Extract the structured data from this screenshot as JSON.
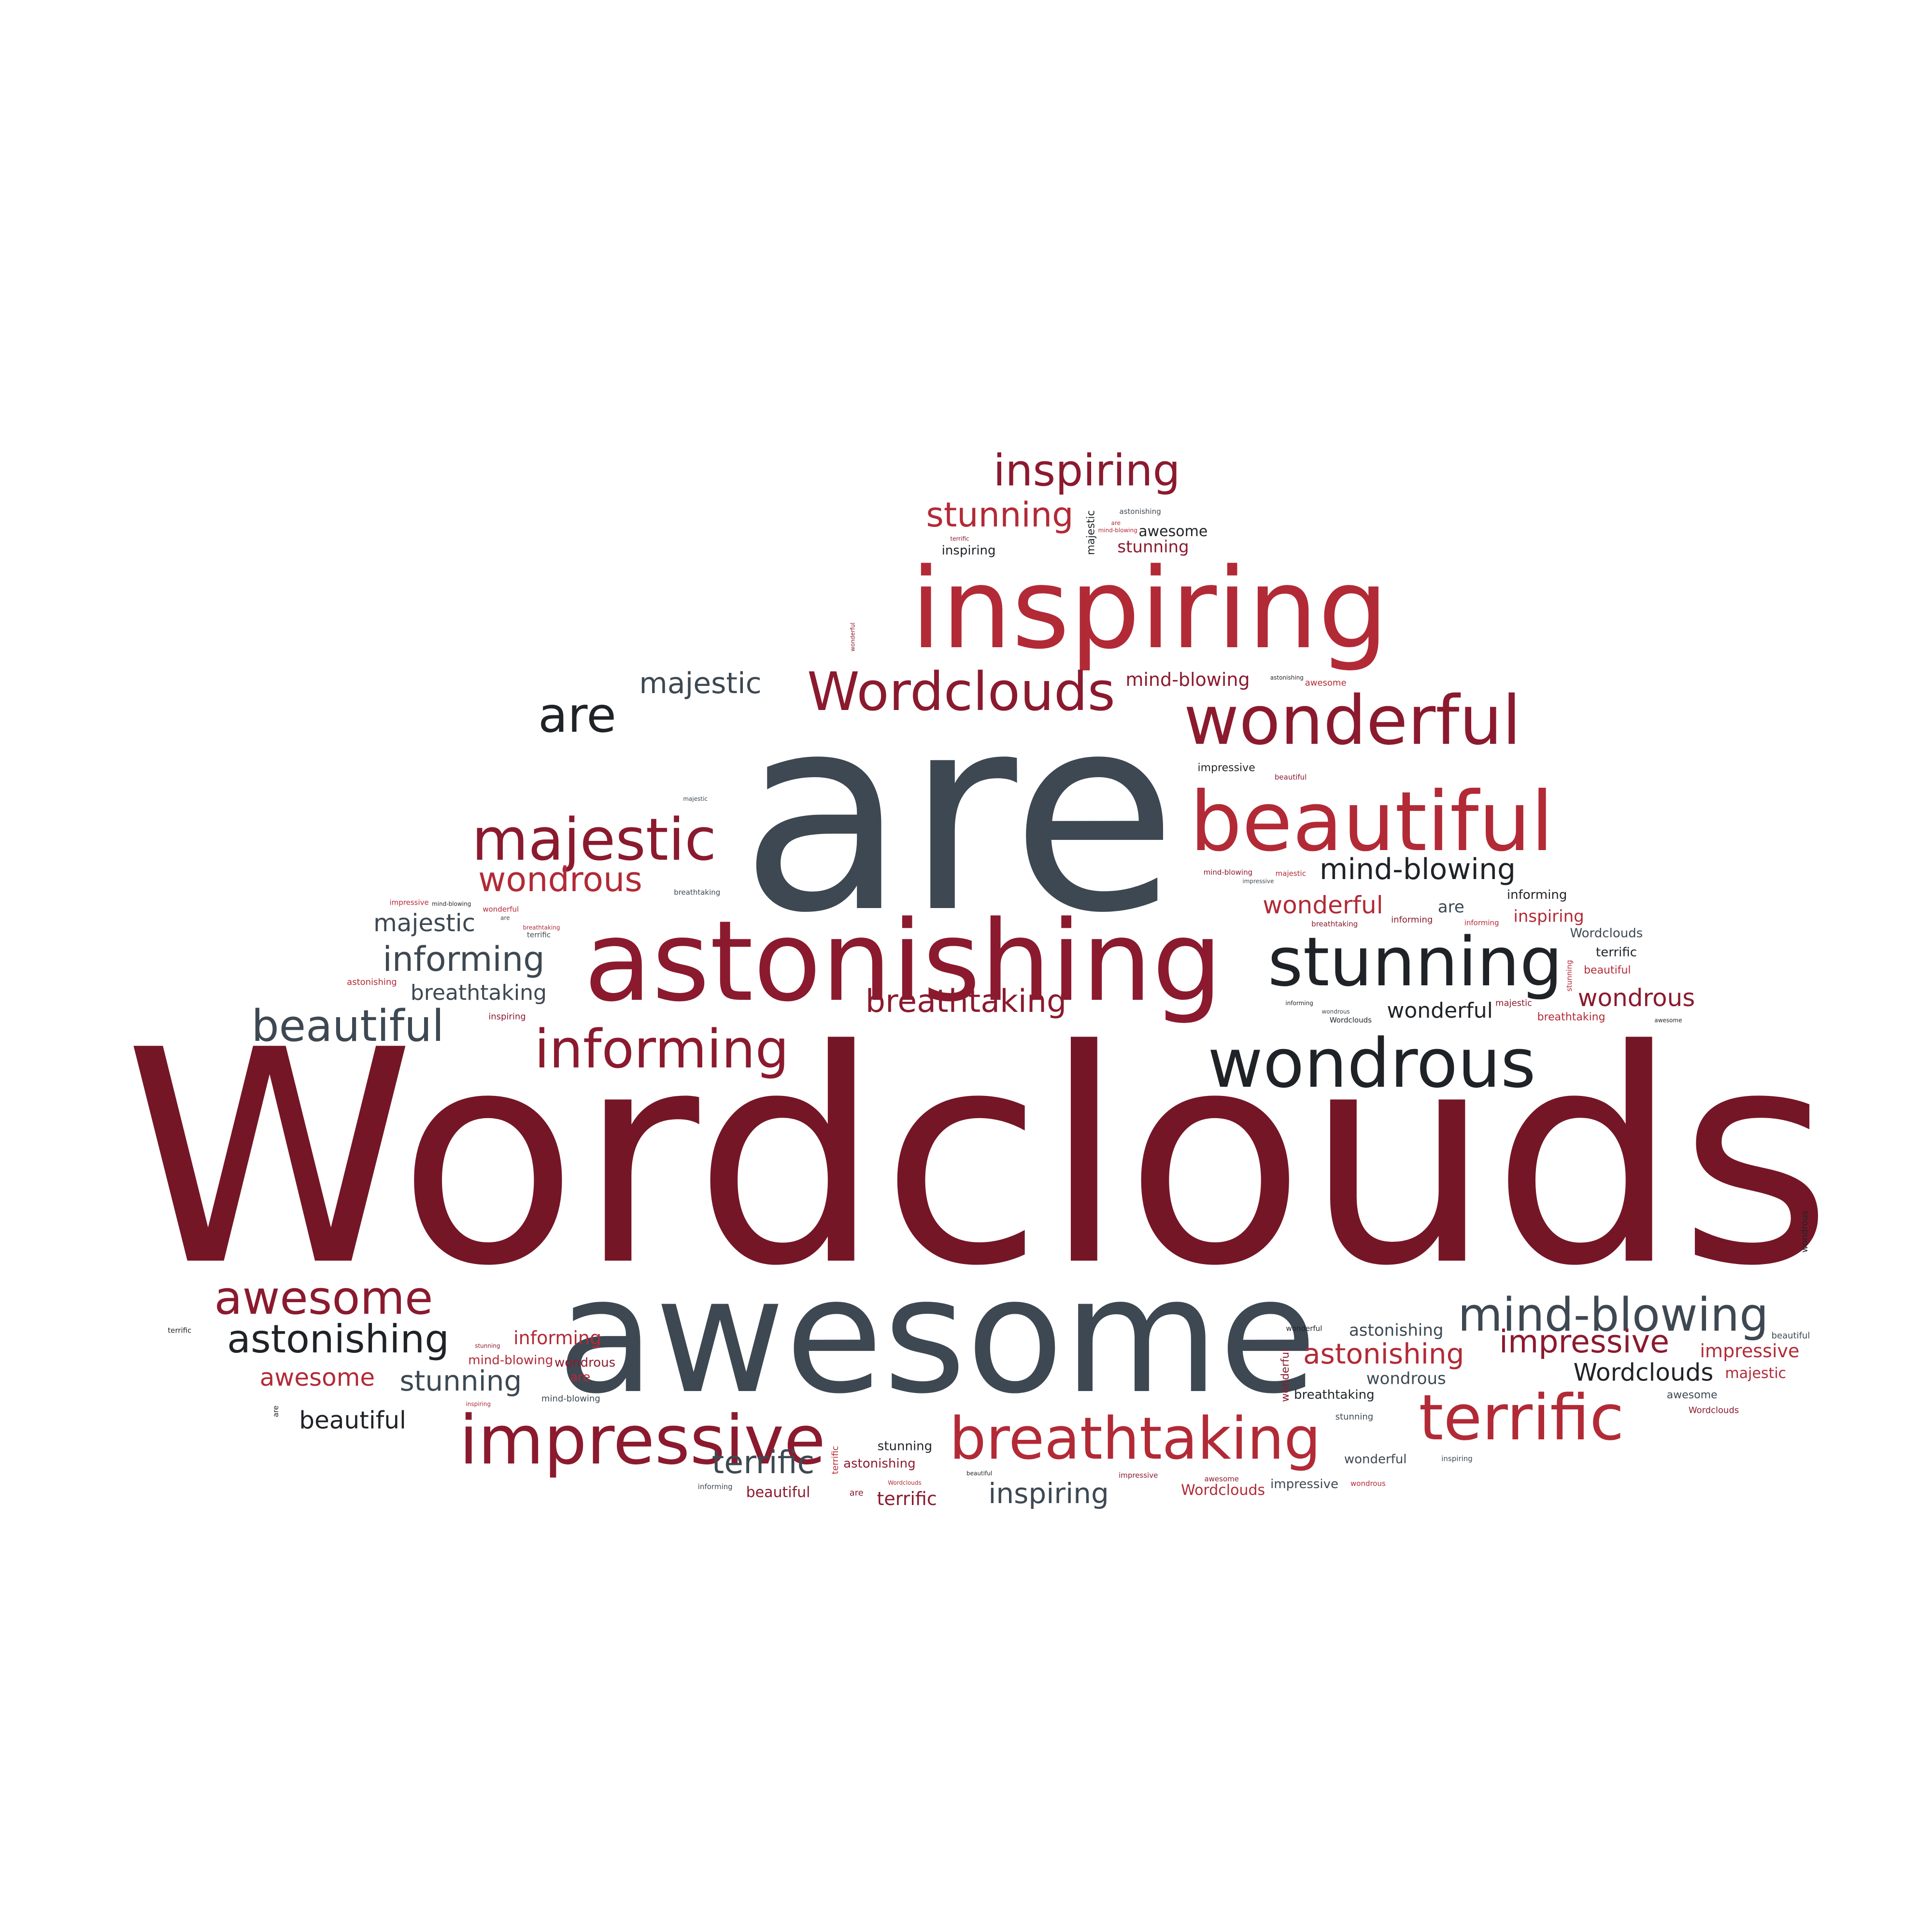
{
  "palette": {
    "dark_maroon": "#751626",
    "maroon": "#8b1a2e",
    "red": "#b22a36",
    "slate": "#3d4852",
    "charcoal": "#1f2327"
  },
  "words": [
    {
      "text": "Wordclouds",
      "color": "dark_maroon"
    },
    {
      "text": "are",
      "color": "slate"
    },
    {
      "text": "awesome",
      "color": "slate"
    },
    {
      "text": "astonishing",
      "color": "maroon"
    },
    {
      "text": "inspiring",
      "color": "red"
    },
    {
      "text": "wonderful",
      "color": "maroon"
    },
    {
      "text": "beautiful",
      "color": "red"
    },
    {
      "text": "stunning",
      "color": "charcoal"
    },
    {
      "text": "wondrous",
      "color": "charcoal"
    },
    {
      "text": "impressive",
      "color": "maroon"
    },
    {
      "text": "breathtaking",
      "color": "red"
    },
    {
      "text": "terrific",
      "color": "red"
    },
    {
      "text": "majestic",
      "color": "maroon"
    },
    {
      "text": "Wordclouds",
      "color": "maroon"
    },
    {
      "text": "informing",
      "color": "maroon"
    },
    {
      "text": "mind-blowing",
      "color": "slate"
    },
    {
      "text": "awesome",
      "color": "maroon"
    },
    {
      "text": "astonishing",
      "color": "charcoal"
    },
    {
      "text": "inspiring",
      "color": "maroon"
    },
    {
      "text": "stunning",
      "color": "red"
    },
    {
      "text": "are",
      "color": "charcoal"
    },
    {
      "text": "majestic",
      "color": "slate"
    },
    {
      "text": "beautiful",
      "color": "slate"
    },
    {
      "text": "informing",
      "color": "slate"
    },
    {
      "text": "mind-blowing",
      "color": "charcoal"
    },
    {
      "text": "wondrous",
      "color": "red"
    },
    {
      "text": "impressive",
      "color": "maroon"
    },
    {
      "text": "breathtaking",
      "color": "maroon"
    },
    {
      "text": "terrific",
      "color": "slate"
    },
    {
      "text": "inspiring",
      "color": "slate"
    },
    {
      "text": "astonishing",
      "color": "red"
    },
    {
      "text": "stunning",
      "color": "slate"
    },
    {
      "text": "wonderful",
      "color": "red"
    },
    {
      "text": "wondrous",
      "color": "maroon"
    },
    {
      "text": "majestic",
      "color": "slate"
    },
    {
      "text": "beautiful",
      "color": "charcoal"
    },
    {
      "text": "Wordclouds",
      "color": "charcoal"
    },
    {
      "text": "awesome",
      "color": "red"
    },
    {
      "text": "breathtaking",
      "color": "slate"
    },
    {
      "text": "wonderful",
      "color": "charcoal"
    },
    {
      "text": "impressive",
      "color": "red"
    },
    {
      "text": "terrific",
      "color": "maroon"
    },
    {
      "text": "informing",
      "color": "red"
    },
    {
      "text": "mind-blowing",
      "color": "maroon"
    },
    {
      "text": "are",
      "color": "slate"
    },
    {
      "text": "astonishing",
      "color": "slate"
    },
    {
      "text": "inspiring",
      "color": "red"
    },
    {
      "text": "stunning",
      "color": "maroon"
    },
    {
      "text": "wondrous",
      "color": "slate"
    },
    {
      "text": "Wordclouds",
      "color": "red"
    },
    {
      "text": "majestic",
      "color": "red"
    },
    {
      "text": "beautiful",
      "color": "maroon"
    },
    {
      "text": "awesome",
      "color": "charcoal"
    },
    {
      "text": "breathtaking",
      "color": "charcoal"
    },
    {
      "text": "impressive",
      "color": "slate"
    },
    {
      "text": "wonderful",
      "color": "slate"
    },
    {
      "text": "terrific",
      "color": "charcoal"
    },
    {
      "text": "informing",
      "color": "charcoal"
    },
    {
      "text": "mind-blowing",
      "color": "red"
    },
    {
      "text": "are",
      "color": "red"
    },
    {
      "text": "astonishing",
      "color": "maroon"
    },
    {
      "text": "stunning",
      "color": "charcoal"
    },
    {
      "text": "wondrous",
      "color": "maroon"
    },
    {
      "text": "inspiring",
      "color": "charcoal"
    },
    {
      "text": "Wordclouds",
      "color": "slate"
    },
    {
      "text": "majestic",
      "color": "charcoal"
    },
    {
      "text": "beautiful",
      "color": "red"
    },
    {
      "text": "awesome",
      "color": "slate"
    },
    {
      "text": "breathtaking",
      "color": "red"
    },
    {
      "text": "impressive",
      "color": "charcoal"
    },
    {
      "text": "wonderful",
      "color": "maroon"
    },
    {
      "text": "terrific",
      "color": "red"
    },
    {
      "text": "informing",
      "color": "maroon"
    },
    {
      "text": "mind-blowing",
      "color": "slate"
    },
    {
      "text": "are",
      "color": "maroon"
    },
    {
      "text": "astonishing",
      "color": "red"
    },
    {
      "text": "stunning",
      "color": "slate"
    },
    {
      "text": "wondrous",
      "color": "charcoal"
    },
    {
      "text": "inspiring",
      "color": "maroon"
    },
    {
      "text": "Wordclouds",
      "color": "maroon"
    },
    {
      "text": "majestic",
      "color": "maroon"
    },
    {
      "text": "beautiful",
      "color": "slate"
    },
    {
      "text": "awesome",
      "color": "red"
    },
    {
      "text": "breathtaking",
      "color": "maroon"
    },
    {
      "text": "impressive",
      "color": "red"
    },
    {
      "text": "wonderful",
      "color": "charcoal"
    },
    {
      "text": "terrific",
      "color": "slate"
    },
    {
      "text": "informing",
      "color": "slate"
    },
    {
      "text": "mind-blowing",
      "color": "maroon"
    },
    {
      "text": "are",
      "color": "charcoal"
    },
    {
      "text": "astonishing",
      "color": "slate"
    },
    {
      "text": "stunning",
      "color": "red"
    },
    {
      "text": "wondrous",
      "color": "red"
    },
    {
      "text": "inspiring",
      "color": "slate"
    },
    {
      "text": "Wordclouds",
      "color": "charcoal"
    },
    {
      "text": "majestic",
      "color": "red"
    },
    {
      "text": "beautiful",
      "color": "maroon"
    },
    {
      "text": "awesome",
      "color": "maroon"
    },
    {
      "text": "breathtaking",
      "color": "slate"
    },
    {
      "text": "impressive",
      "color": "maroon"
    },
    {
      "text": "wonderful",
      "color": "red"
    },
    {
      "text": "terrific",
      "color": "charcoal"
    },
    {
      "text": "informing",
      "color": "red"
    },
    {
      "text": "mind-blowing",
      "color": "charcoal"
    },
    {
      "text": "are",
      "color": "slate"
    },
    {
      "text": "astonishing",
      "color": "charcoal"
    },
    {
      "text": "stunning",
      "color": "maroon"
    },
    {
      "text": "wondrous",
      "color": "slate"
    },
    {
      "text": "inspiring",
      "color": "red"
    },
    {
      "text": "Wordclouds",
      "color": "red"
    },
    {
      "text": "majestic",
      "color": "slate"
    },
    {
      "text": "beautiful",
      "color": "charcoal"
    },
    {
      "text": "awesome",
      "color": "charcoal"
    },
    {
      "text": "breathtaking",
      "color": "red"
    },
    {
      "text": "impressive",
      "color": "slate"
    },
    {
      "text": "wonderful",
      "color": "maroon"
    },
    {
      "text": "terrific",
      "color": "maroon"
    },
    {
      "text": "informing",
      "color": "charcoal"
    },
    {
      "text": "mind-blowing",
      "color": "red"
    },
    {
      "text": "are",
      "color": "red"
    },
    {
      "text": "astonishing",
      "color": "maroon"
    },
    {
      "text": "stunning",
      "color": "charcoal"
    },
    {
      "text": "wondrous",
      "color": "maroon"
    },
    {
      "text": "inspiring",
      "color": "charcoal"
    },
    {
      "text": "Wordclouds",
      "color": "slate"
    },
    {
      "text": "majestic",
      "color": "charcoal"
    },
    {
      "text": "beautiful",
      "color": "red"
    },
    {
      "text": "awesome",
      "color": "slate"
    },
    {
      "text": "breathtaking",
      "color": "charcoal"
    },
    {
      "text": "impressive",
      "color": "red"
    },
    {
      "text": "wonderful",
      "color": "slate"
    },
    {
      "text": "terrific",
      "color": "red"
    },
    {
      "text": "informing",
      "color": "maroon"
    },
    {
      "text": "mind-blowing",
      "color": "slate"
    },
    {
      "text": "are",
      "color": "maroon"
    },
    {
      "text": "astonishing",
      "color": "red"
    },
    {
      "text": "stunning",
      "color": "slate"
    },
    {
      "text": "wondrous",
      "color": "red"
    },
    {
      "text": "inspiring",
      "color": "maroon"
    },
    {
      "text": "Wordclouds",
      "color": "maroon"
    },
    {
      "text": "majestic",
      "color": "maroon"
    },
    {
      "text": "beautiful",
      "color": "slate"
    },
    {
      "text": "awesome",
      "color": "red"
    },
    {
      "text": "breathtaking",
      "color": "maroon"
    },
    {
      "text": "impressive",
      "color": "charcoal"
    },
    {
      "text": "wonderful",
      "color": "red"
    },
    {
      "text": "terrific",
      "color": "slate"
    },
    {
      "text": "informing",
      "color": "slate"
    },
    {
      "text": "mind-blowing",
      "color": "maroon"
    },
    {
      "text": "are",
      "color": "charcoal"
    },
    {
      "text": "astonishing",
      "color": "slate"
    },
    {
      "text": "stunning",
      "color": "red"
    },
    {
      "text": "wondrous",
      "color": "charcoal"
    },
    {
      "text": "inspiring",
      "color": "red"
    },
    {
      "text": "Wordclouds",
      "color": "red"
    },
    {
      "text": "majestic",
      "color": "red"
    },
    {
      "text": "beautiful",
      "color": "maroon"
    },
    {
      "text": "awesome",
      "color": "maroon"
    },
    {
      "text": "breathtaking",
      "color": "red"
    },
    {
      "text": "impressive",
      "color": "maroon"
    },
    {
      "text": "wonderful",
      "color": "charcoal"
    },
    {
      "text": "terrific",
      "color": "maroon"
    },
    {
      "text": "informing",
      "color": "red"
    },
    {
      "text": "mind-blowing",
      "color": "charcoal"
    },
    {
      "text": "are",
      "color": "slate"
    },
    {
      "text": "astonishing",
      "color": "charcoal"
    },
    {
      "text": "stunning",
      "color": "maroon"
    },
    {
      "text": "wondrous",
      "color": "slate"
    },
    {
      "text": "inspiring",
      "color": "slate"
    },
    {
      "text": "Wordclouds",
      "color": "charcoal"
    },
    {
      "text": "majestic",
      "color": "slate"
    },
    {
      "text": "beautiful",
      "color": "charcoal"
    },
    {
      "text": "awesome",
      "color": "charcoal"
    },
    {
      "text": "breathtaking",
      "color": "slate"
    },
    {
      "text": "impressive",
      "color": "slate"
    },
    {
      "text": "wonderful",
      "color": "maroon"
    },
    {
      "text": "terrific",
      "color": "charcoal"
    },
    {
      "text": "informing",
      "color": "charcoal"
    },
    {
      "text": "mind-blowing",
      "color": "red"
    },
    {
      "text": "are",
      "color": "red"
    },
    {
      "text": "astonishing",
      "color": "maroon"
    },
    {
      "text": "stunning",
      "color": "charcoal"
    },
    {
      "text": "wondrous",
      "color": "maroon"
    },
    {
      "text": "inspiring",
      "color": "charcoal"
    },
    {
      "text": "Wordclouds",
      "color": "slate"
    },
    {
      "text": "majestic",
      "color": "charcoal"
    },
    {
      "text": "beautiful",
      "color": "red"
    },
    {
      "text": "awesome",
      "color": "slate"
    },
    {
      "text": "breathtaking",
      "color": "charcoal"
    },
    {
      "text": "impressive",
      "color": "red"
    },
    {
      "text": "wonderful",
      "color": "slate"
    },
    {
      "text": "terrific",
      "color": "red"
    },
    {
      "text": "informing",
      "color": "maroon"
    },
    {
      "text": "mind-blowing",
      "color": "slate"
    },
    {
      "text": "are",
      "color": "maroon"
    },
    {
      "text": "astonishing",
      "color": "red"
    },
    {
      "text": "stunning",
      "color": "slate"
    },
    {
      "text": "wondrous",
      "color": "red"
    },
    {
      "text": "inspiring",
      "color": "maroon"
    },
    {
      "text": "Wordclouds",
      "color": "maroon"
    },
    {
      "text": "majestic",
      "color": "maroon"
    },
    {
      "text": "beautiful",
      "color": "slate"
    },
    {
      "text": "awesome",
      "color": "red"
    },
    {
      "text": "breathtaking",
      "color": "maroon"
    },
    {
      "text": "impressive",
      "color": "charcoal"
    },
    {
      "text": "wonderful",
      "color": "red"
    },
    {
      "text": "terrific",
      "color": "slate"
    },
    {
      "text": "informing",
      "color": "slate"
    },
    {
      "text": "mind-blowing",
      "color": "maroon"
    },
    {
      "text": "are",
      "color": "charcoal"
    },
    {
      "text": "astonishing",
      "color": "slate"
    },
    {
      "text": "stunning",
      "color": "red"
    },
    {
      "text": "wondrous",
      "color": "charcoal"
    },
    {
      "text": "inspiring",
      "color": "red"
    },
    {
      "text": "Wordclouds",
      "color": "red"
    },
    {
      "text": "majestic",
      "color": "red"
    },
    {
      "text": "beautiful",
      "color": "maroon"
    },
    {
      "text": "awesome",
      "color": "maroon"
    },
    {
      "text": "breathtaking",
      "color": "red"
    },
    {
      "text": "impressive",
      "color": "maroon"
    },
    {
      "text": "wonderful",
      "color": "charcoal"
    },
    {
      "text": "terrific",
      "color": "maroon"
    },
    {
      "text": "informing",
      "color": "red"
    },
    {
      "text": "mind-blowing",
      "color": "charcoal"
    },
    {
      "text": "are",
      "color": "slate"
    },
    {
      "text": "astonishing",
      "color": "charcoal"
    },
    {
      "text": "stunning",
      "color": "maroon"
    },
    {
      "text": "wondrous",
      "color": "slate"
    },
    {
      "text": "inspiring",
      "color": "slate"
    },
    {
      "text": "Wordclouds",
      "color": "charcoal"
    },
    {
      "text": "majestic",
      "color": "slate"
    },
    {
      "text": "beautiful",
      "color": "charcoal"
    },
    {
      "text": "awesome",
      "color": "charcoal"
    },
    {
      "text": "breathtaking",
      "color": "slate"
    },
    {
      "text": "impressive",
      "color": "slate"
    },
    {
      "text": "wonderful",
      "color": "maroon"
    },
    {
      "text": "terrific",
      "color": "charcoal"
    },
    {
      "text": "informing",
      "color": "charcoal"
    },
    {
      "text": "mind-blowing",
      "color": "red"
    },
    {
      "text": "are",
      "color": "red"
    },
    {
      "text": "astonishing",
      "color": "maroon"
    },
    {
      "text": "stunning",
      "color": "charcoal"
    },
    {
      "text": "wondrous",
      "color": "maroon"
    },
    {
      "text": "inspiring",
      "color": "charcoal"
    },
    {
      "text": "Wordclouds",
      "color": "slate"
    },
    {
      "text": "majestic",
      "color": "charcoal"
    },
    {
      "text": "beautiful",
      "color": "red"
    },
    {
      "text": "awesome",
      "color": "slate"
    },
    {
      "text": "breathtaking",
      "color": "charcoal"
    },
    {
      "text": "impressive",
      "color": "red"
    },
    {
      "text": "wonderful",
      "color": "slate"
    },
    {
      "text": "terrific",
      "color": "red"
    },
    {
      "text": "informing",
      "color": "maroon"
    },
    {
      "text": "mind-blowing",
      "color": "slate"
    },
    {
      "text": "are",
      "color": "maroon"
    },
    {
      "text": "astonishing",
      "color": "red"
    },
    {
      "text": "stunning",
      "color": "slate"
    },
    {
      "text": "wondrous",
      "color": "red"
    },
    {
      "text": "inspiring",
      "color": "maroon"
    },
    {
      "text": "Wordclouds",
      "color": "maroon"
    },
    {
      "text": "majestic",
      "color": "maroon"
    },
    {
      "text": "beautiful",
      "color": "slate"
    },
    {
      "text": "awesome",
      "color": "red"
    },
    {
      "text": "breathtaking",
      "color": "maroon"
    },
    {
      "text": "impressive",
      "color": "charcoal"
    },
    {
      "text": "wonderful",
      "color": "red"
    },
    {
      "text": "terrific",
      "color": "slate"
    },
    {
      "text": "informing",
      "color": "slate"
    },
    {
      "text": "mind-blowing",
      "color": "maroon"
    },
    {
      "text": "are",
      "color": "charcoal"
    },
    {
      "text": "astonishing",
      "color": "slate"
    },
    {
      "text": "stunning",
      "color": "red"
    },
    {
      "text": "wondrous",
      "color": "charcoal"
    },
    {
      "text": "inspiring",
      "color": "red"
    },
    {
      "text": "Wordclouds",
      "color": "red"
    },
    {
      "text": "majestic",
      "color": "red"
    },
    {
      "text": "beautiful",
      "color": "maroon"
    },
    {
      "text": "awesome",
      "color": "maroon"
    },
    {
      "text": "breathtaking",
      "color": "red"
    },
    {
      "text": "impressive",
      "color": "maroon"
    },
    {
      "text": "wonderful",
      "color": "charcoal"
    },
    {
      "text": "terrific",
      "color": "maroon"
    },
    {
      "text": "informing",
      "color": "red"
    },
    {
      "text": "mind-blowing",
      "color": "charcoal"
    }
  ]
}
